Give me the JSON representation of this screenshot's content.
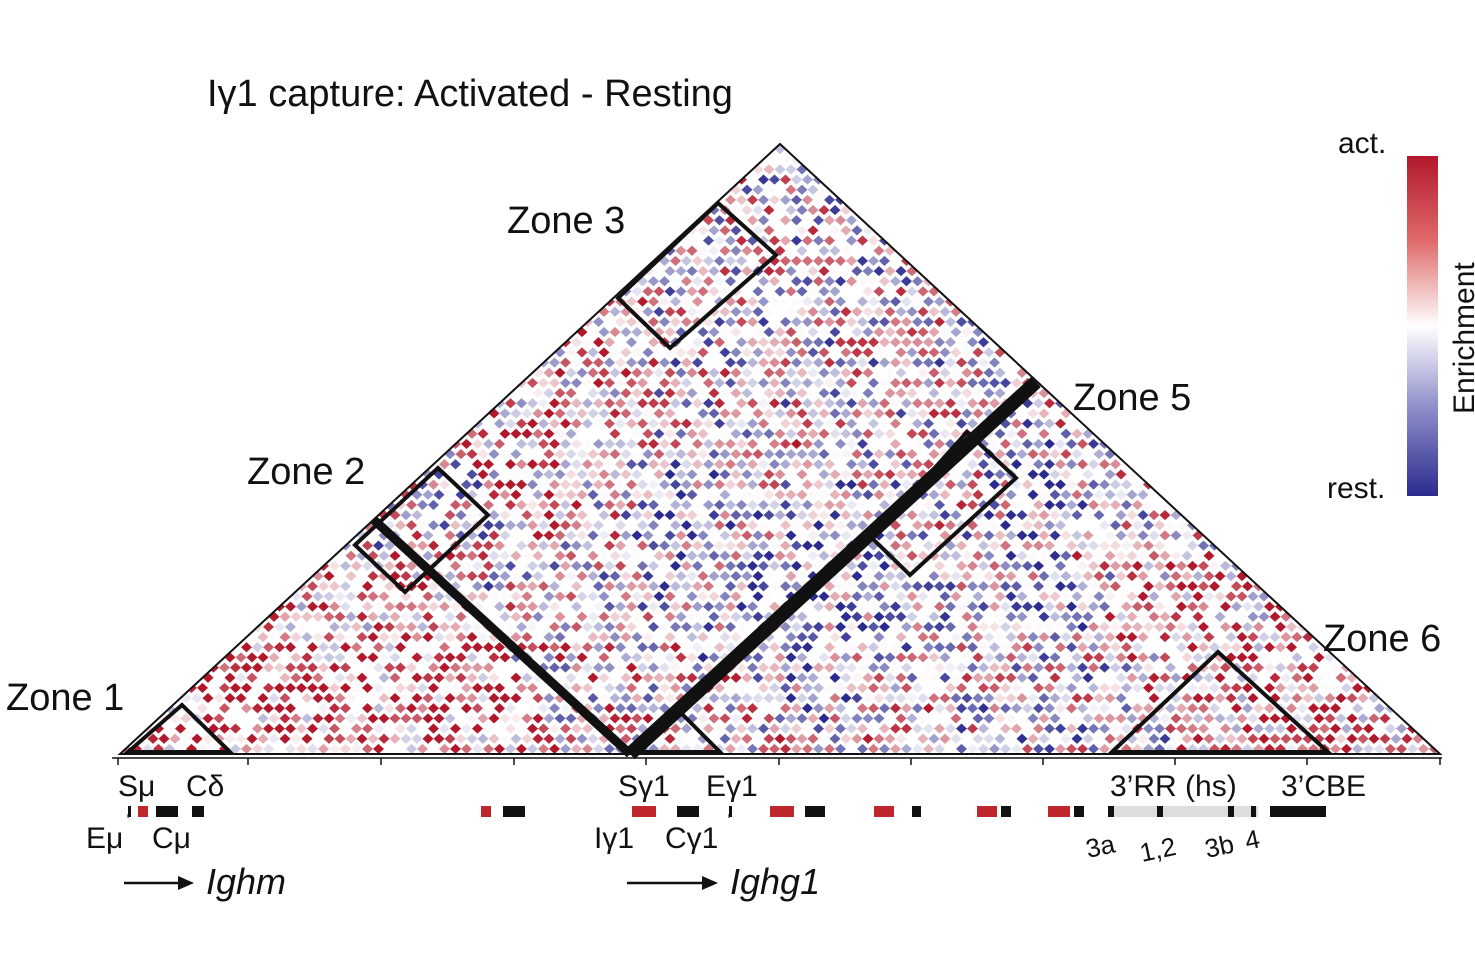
{
  "chart_data": {
    "type": "heatmap",
    "title": "Iγ1 capture: Activated - Resting",
    "colorbar": {
      "label": "Enrichment",
      "high_label": "act.",
      "low_label": "rest.",
      "high_color": "#b2182b",
      "mid_color": "#ffffff",
      "low_color": "#2b2b8f"
    },
    "zones": [
      {
        "name": "Zone 1",
        "predominant": "activated"
      },
      {
        "name": "Zone 2",
        "predominant": "activated"
      },
      {
        "name": "Zone 3",
        "predominant": "activated"
      },
      {
        "name": "Zone 5",
        "predominant": "activated"
      },
      {
        "name": "Zone 6",
        "predominant": "activated"
      }
    ],
    "gene_labels": {
      "top_row": [
        "Sμ",
        "Cδ",
        "Sγ1",
        "Eγ1",
        "3’RR (hs)",
        "3’CBE"
      ],
      "bottom_row": [
        "Eμ",
        "Cμ",
        "Iγ1",
        "Cγ1"
      ],
      "hs_sites": [
        "3a",
        "1,2",
        "3b",
        "4"
      ],
      "genes": [
        "Ighm",
        "Ighg1"
      ]
    },
    "legend_colors": {
      "feature_red": "#c0272d",
      "feature_black": "#111111",
      "feature_grey": "#dddddd"
    }
  }
}
